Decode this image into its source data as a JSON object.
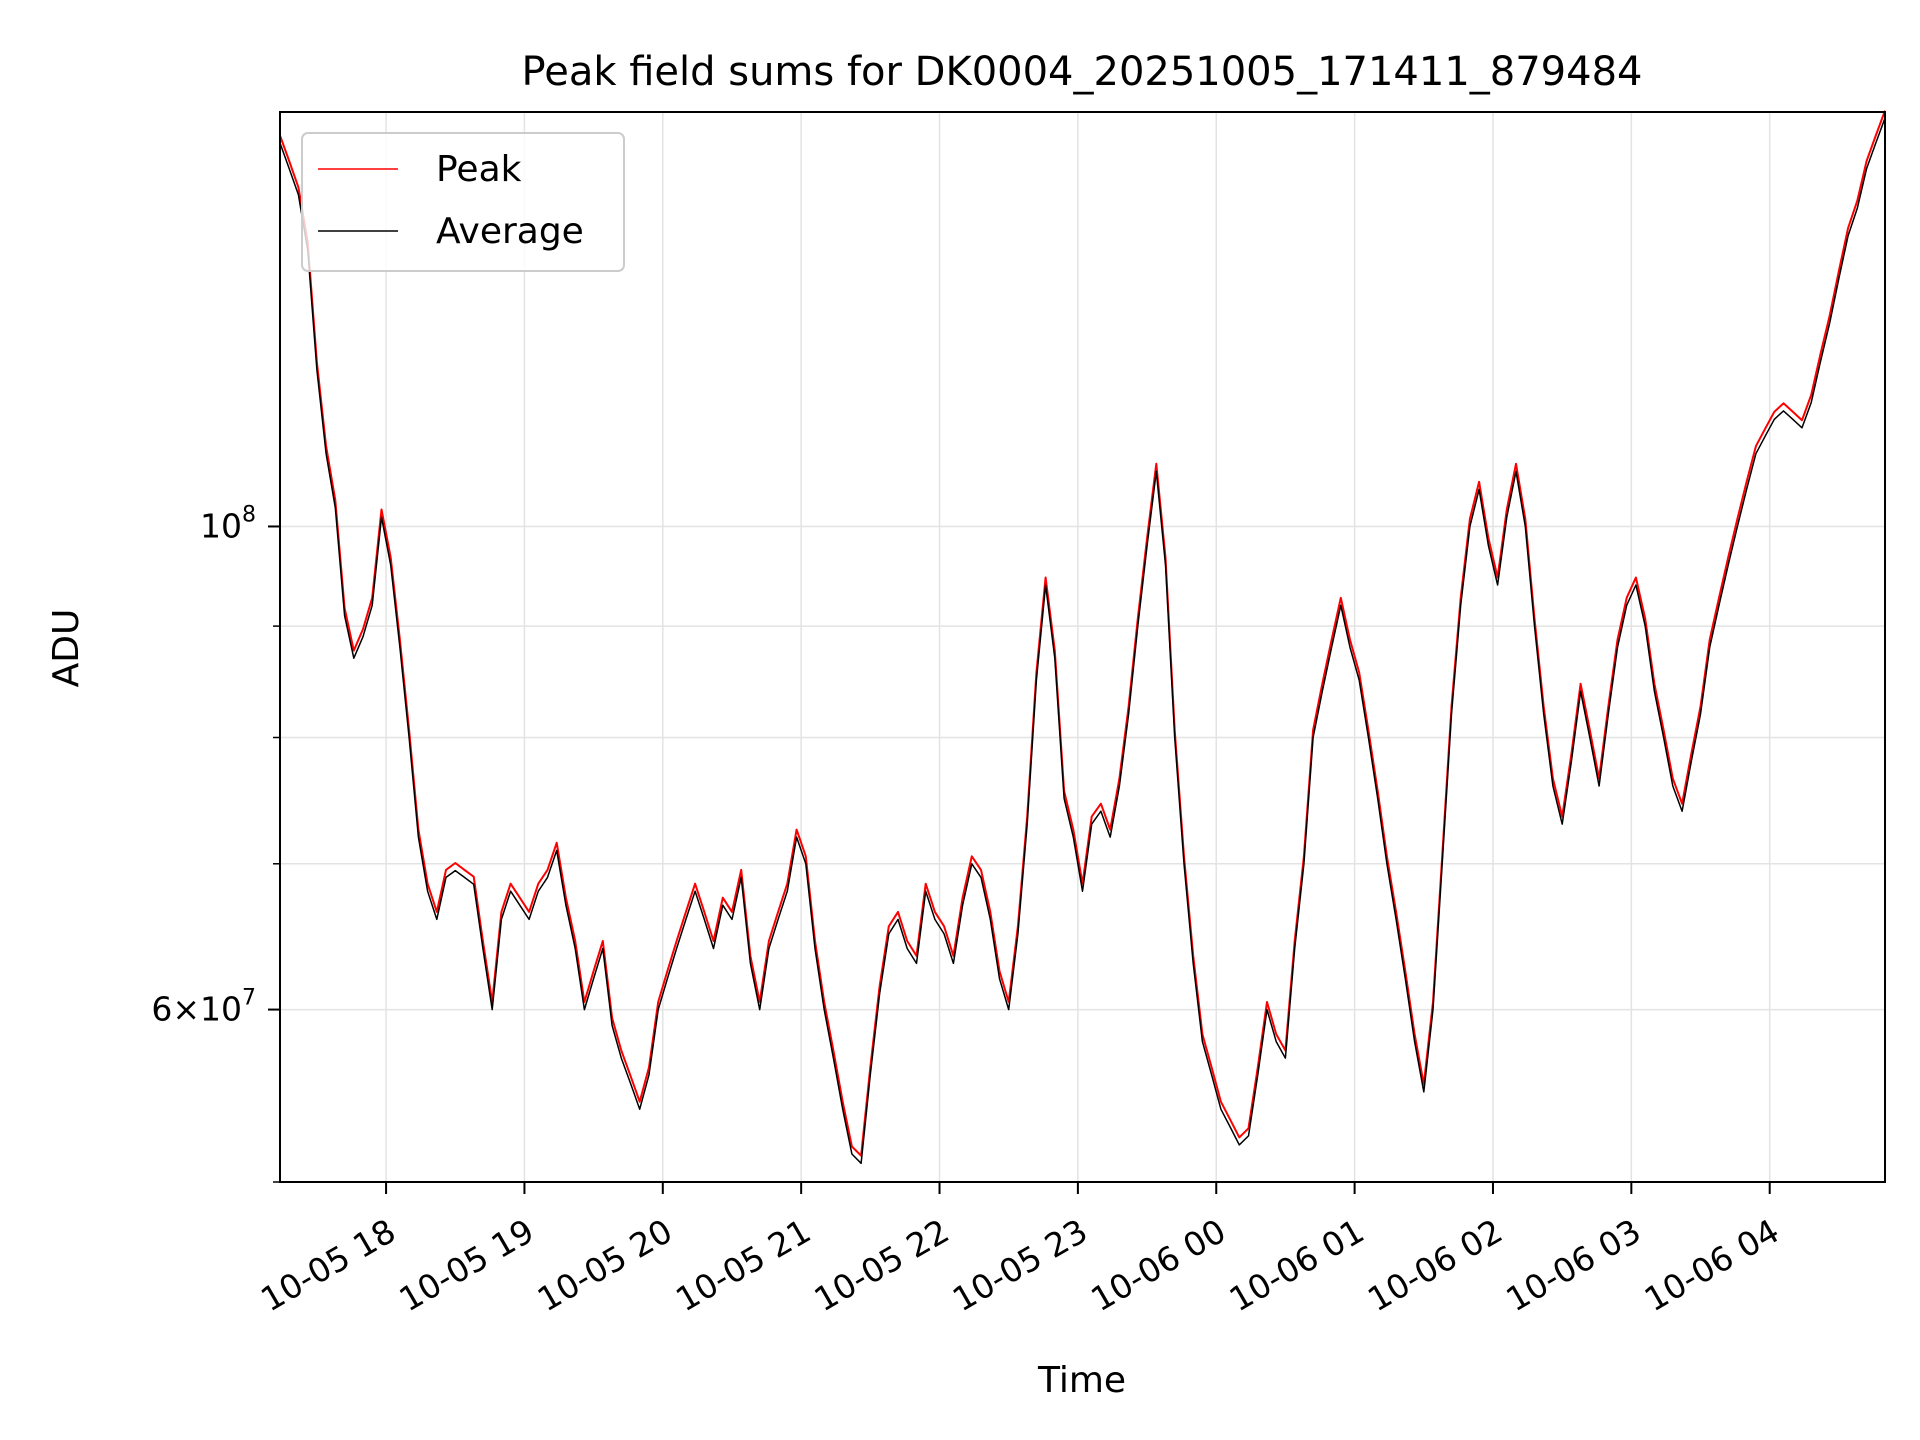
{
  "chart_data": {
    "type": "line",
    "title": "Peak field sums for DK0004_20251005_171411_879484",
    "xlabel": "Time",
    "ylabel": "ADU",
    "yscale": "log",
    "ylim": [
      50000000,
      155000000
    ],
    "xlim": [
      "2025-10-05 17:14",
      "2025-10-06 04:50"
    ],
    "grid": true,
    "legend_position": "top-left",
    "x_tick_labels": [
      "10-05 18",
      "10-05 19",
      "10-05 20",
      "10-05 21",
      "10-05 22",
      "10-05 23",
      "10-06 00",
      "10-06 01",
      "10-06 02",
      "10-06 03",
      "10-06 04"
    ],
    "x_tick_values": [
      "2025-10-05 18:00",
      "2025-10-05 19:00",
      "2025-10-05 20:00",
      "2025-10-05 21:00",
      "2025-10-05 22:00",
      "2025-10-05 23:00",
      "2025-10-06 00:00",
      "2025-10-06 01:00",
      "2025-10-06 02:00",
      "2025-10-06 03:00",
      "2025-10-06 04:00"
    ],
    "y_tick_labels": [
      {
        "value": 60000000,
        "mantissa": "6",
        "exponent": "7"
      },
      {
        "value": 100000000,
        "mantissa": "",
        "exponent": "8"
      }
    ],
    "y_minor_ticks": [
      50000000,
      70000000,
      80000000,
      90000000
    ],
    "series": [
      {
        "name": "Peak",
        "color": "#ff0000",
        "offset_ratio": 1.008
      },
      {
        "name": "Average",
        "color": "#000000",
        "offset_ratio": 1.0
      }
    ],
    "x": [
      "2025-10-05 17:14",
      "2025-10-05 17:18",
      "2025-10-05 17:22",
      "2025-10-05 17:26",
      "2025-10-05 17:30",
      "2025-10-05 17:34",
      "2025-10-05 17:38",
      "2025-10-05 17:42",
      "2025-10-05 17:46",
      "2025-10-05 17:50",
      "2025-10-05 17:54",
      "2025-10-05 17:58",
      "2025-10-05 18:02",
      "2025-10-05 18:06",
      "2025-10-05 18:10",
      "2025-10-05 18:14",
      "2025-10-05 18:18",
      "2025-10-05 18:22",
      "2025-10-05 18:26",
      "2025-10-05 18:30",
      "2025-10-05 18:34",
      "2025-10-05 18:38",
      "2025-10-05 18:42",
      "2025-10-05 18:46",
      "2025-10-05 18:50",
      "2025-10-05 18:54",
      "2025-10-05 18:58",
      "2025-10-05 19:02",
      "2025-10-05 19:06",
      "2025-10-05 19:10",
      "2025-10-05 19:14",
      "2025-10-05 19:18",
      "2025-10-05 19:22",
      "2025-10-05 19:26",
      "2025-10-05 19:30",
      "2025-10-05 19:34",
      "2025-10-05 19:38",
      "2025-10-05 19:42",
      "2025-10-05 19:46",
      "2025-10-05 19:50",
      "2025-10-05 19:54",
      "2025-10-05 19:58",
      "2025-10-05 20:02",
      "2025-10-05 20:06",
      "2025-10-05 20:10",
      "2025-10-05 20:14",
      "2025-10-05 20:18",
      "2025-10-05 20:22",
      "2025-10-05 20:26",
      "2025-10-05 20:30",
      "2025-10-05 20:34",
      "2025-10-05 20:38",
      "2025-10-05 20:42",
      "2025-10-05 20:46",
      "2025-10-05 20:50",
      "2025-10-05 20:54",
      "2025-10-05 20:58",
      "2025-10-05 21:02",
      "2025-10-05 21:06",
      "2025-10-05 21:10",
      "2025-10-05 21:14",
      "2025-10-05 21:18",
      "2025-10-05 21:22",
      "2025-10-05 21:26",
      "2025-10-05 21:30",
      "2025-10-05 21:34",
      "2025-10-05 21:38",
      "2025-10-05 21:42",
      "2025-10-05 21:46",
      "2025-10-05 21:50",
      "2025-10-05 21:54",
      "2025-10-05 21:58",
      "2025-10-05 22:02",
      "2025-10-05 22:06",
      "2025-10-05 22:10",
      "2025-10-05 22:14",
      "2025-10-05 22:18",
      "2025-10-05 22:22",
      "2025-10-05 22:26",
      "2025-10-05 22:30",
      "2025-10-05 22:34",
      "2025-10-05 22:38",
      "2025-10-05 22:42",
      "2025-10-05 22:46",
      "2025-10-05 22:50",
      "2025-10-05 22:54",
      "2025-10-05 22:58",
      "2025-10-05 23:02",
      "2025-10-05 23:06",
      "2025-10-05 23:10",
      "2025-10-05 23:14",
      "2025-10-05 23:18",
      "2025-10-05 23:22",
      "2025-10-05 23:26",
      "2025-10-05 23:30",
      "2025-10-05 23:34",
      "2025-10-05 23:38",
      "2025-10-05 23:42",
      "2025-10-05 23:46",
      "2025-10-05 23:50",
      "2025-10-05 23:54",
      "2025-10-05 23:58",
      "2025-10-06 00:02",
      "2025-10-06 00:06",
      "2025-10-06 00:10",
      "2025-10-06 00:14",
      "2025-10-06 00:18",
      "2025-10-06 00:22",
      "2025-10-06 00:26",
      "2025-10-06 00:30",
      "2025-10-06 00:34",
      "2025-10-06 00:38",
      "2025-10-06 00:42",
      "2025-10-06 00:46",
      "2025-10-06 00:50",
      "2025-10-06 00:54",
      "2025-10-06 00:58",
      "2025-10-06 01:02",
      "2025-10-06 01:06",
      "2025-10-06 01:10",
      "2025-10-06 01:14",
      "2025-10-06 01:18",
      "2025-10-06 01:22",
      "2025-10-06 01:26",
      "2025-10-06 01:30",
      "2025-10-06 01:34",
      "2025-10-06 01:38",
      "2025-10-06 01:42",
      "2025-10-06 01:46",
      "2025-10-06 01:50",
      "2025-10-06 01:54",
      "2025-10-06 01:58",
      "2025-10-06 02:02",
      "2025-10-06 02:06",
      "2025-10-06 02:10",
      "2025-10-06 02:14",
      "2025-10-06 02:18",
      "2025-10-06 02:22",
      "2025-10-06 02:26",
      "2025-10-06 02:30",
      "2025-10-06 02:34",
      "2025-10-06 02:38",
      "2025-10-06 02:42",
      "2025-10-06 02:46",
      "2025-10-06 02:50",
      "2025-10-06 02:54",
      "2025-10-06 02:58",
      "2025-10-06 03:02",
      "2025-10-06 03:06",
      "2025-10-06 03:10",
      "2025-10-06 03:14",
      "2025-10-06 03:18",
      "2025-10-06 03:22",
      "2025-10-06 03:26",
      "2025-10-06 03:30",
      "2025-10-06 03:34",
      "2025-10-06 03:38",
      "2025-10-06 03:42",
      "2025-10-06 03:46",
      "2025-10-06 03:50",
      "2025-10-06 03:54",
      "2025-10-06 03:58",
      "2025-10-06 04:02",
      "2025-10-06 04:06",
      "2025-10-06 04:10",
      "2025-10-06 04:14",
      "2025-10-06 04:18",
      "2025-10-06 04:22",
      "2025-10-06 04:26",
      "2025-10-06 04:30",
      "2025-10-06 04:34",
      "2025-10-06 04:38",
      "2025-10-06 04:42",
      "2025-10-06 04:46",
      "2025-10-06 04:50"
    ],
    "values": [
      150000000,
      146000000,
      142000000,
      134000000,
      118000000,
      108000000,
      102000000,
      91000000,
      87000000,
      89000000,
      92000000,
      101000000,
      96000000,
      88000000,
      80000000,
      72000000,
      68000000,
      66000000,
      69000000,
      69500000,
      69000000,
      68500000,
      64000000,
      60000000,
      66000000,
      68000000,
      67000000,
      66000000,
      68000000,
      69000000,
      71000000,
      67000000,
      64000000,
      60000000,
      62000000,
      64000000,
      59000000,
      57000000,
      55500000,
      54000000,
      56000000,
      60000000,
      62000000,
      64000000,
      66000000,
      68000000,
      66000000,
      64000000,
      67000000,
      66000000,
      69000000,
      63000000,
      60000000,
      64000000,
      66000000,
      68000000,
      72000000,
      70000000,
      64000000,
      60000000,
      57000000,
      54000000,
      51500000,
      51000000,
      56000000,
      61000000,
      65000000,
      66000000,
      64000000,
      63000000,
      68000000,
      66000000,
      65000000,
      63000000,
      67000000,
      70000000,
      69000000,
      66000000,
      62000000,
      60000000,
      65000000,
      73000000,
      85000000,
      94000000,
      87000000,
      75000000,
      72000000,
      68000000,
      73000000,
      74000000,
      72000000,
      76000000,
      82000000,
      90000000,
      98000000,
      106000000,
      96000000,
      80000000,
      70000000,
      63000000,
      58000000,
      56000000,
      54000000,
      53000000,
      52000000,
      52500000,
      56000000,
      60000000,
      58000000,
      57000000,
      64000000,
      70000000,
      80000000,
      84000000,
      88000000,
      92000000,
      88000000,
      85000000,
      80000000,
      75000000,
      70000000,
      66000000,
      62000000,
      58000000,
      55000000,
      60000000,
      70000000,
      82000000,
      92000000,
      100000000,
      104000000,
      98000000,
      94000000,
      101000000,
      106000000,
      100000000,
      90000000,
      82000000,
      76000000,
      73000000,
      78000000,
      84000000,
      80000000,
      76000000,
      82000000,
      88000000,
      92000000,
      94000000,
      90000000,
      84000000,
      80000000,
      76000000,
      74000000,
      78000000,
      82000000,
      88000000,
      92000000,
      96000000,
      100000000,
      104000000,
      108000000,
      110000000,
      112000000,
      113000000,
      112000000,
      111000000,
      114000000,
      119000000,
      124000000,
      130000000,
      136000000,
      140000000,
      146000000,
      150000000,
      154000000
    ]
  }
}
